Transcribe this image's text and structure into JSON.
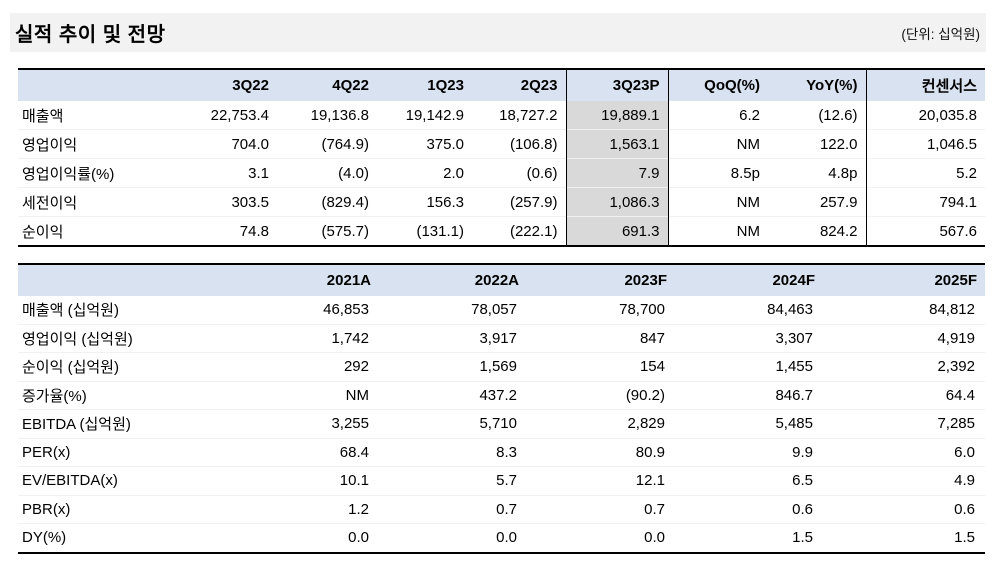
{
  "header": {
    "title": "실적 추이 및 전망",
    "unit_note": "(단위: 십억원)"
  },
  "colors": {
    "header_row_bg": "#d9e2f0",
    "highlight_col_bg": "#d9d9d9",
    "title_band_bg": "#f2f2f2",
    "border": "#000000"
  },
  "quarterly_table": {
    "columns": [
      "",
      "3Q22",
      "4Q22",
      "1Q23",
      "2Q23",
      "3Q23P",
      "QoQ(%)",
      "YoY(%)",
      "컨센서스"
    ],
    "highlight_column_index": 5,
    "vline_column_indices": [
      5,
      6,
      8
    ],
    "rows": [
      {
        "label": "매출액",
        "values": [
          "22,753.4",
          "19,136.8",
          "19,142.9",
          "18,727.2",
          "19,889.1",
          "6.2",
          "(12.6)",
          "20,035.8"
        ]
      },
      {
        "label": "영업이익",
        "values": [
          "704.0",
          "(764.9)",
          "375.0",
          "(106.8)",
          "1,563.1",
          "NM",
          "122.0",
          "1,046.5"
        ]
      },
      {
        "label": "영업이익률(%)",
        "values": [
          "3.1",
          "(4.0)",
          "2.0",
          "(0.6)",
          "7.9",
          "8.5p",
          "4.8p",
          "5.2"
        ]
      },
      {
        "label": "세전이익",
        "values": [
          "303.5",
          "(829.4)",
          "156.3",
          "(257.9)",
          "1,086.3",
          "NM",
          "257.9",
          "794.1"
        ]
      },
      {
        "label": "순이익",
        "values": [
          "74.8",
          "(575.7)",
          "(131.1)",
          "(222.1)",
          "691.3",
          "NM",
          "824.2",
          "567.6"
        ]
      }
    ]
  },
  "annual_table": {
    "columns": [
      "",
      "2021A",
      "2022A",
      "2023F",
      "2024F",
      "2025F"
    ],
    "highlight_column_index": -1,
    "vline_column_indices": [],
    "rows": [
      {
        "label": "매출액 (십억원)",
        "values": [
          "46,853",
          "78,057",
          "78,700",
          "84,463",
          "84,812"
        ]
      },
      {
        "label": "영업이익 (십억원)",
        "values": [
          "1,742",
          "3,917",
          "847",
          "3,307",
          "4,919"
        ]
      },
      {
        "label": "순이익 (십억원)",
        "values": [
          "292",
          "1,569",
          "154",
          "1,455",
          "2,392"
        ]
      },
      {
        "label": "증가율(%)",
        "values": [
          "NM",
          "437.2",
          "(90.2)",
          "846.7",
          "64.4"
        ]
      },
      {
        "label": "EBITDA (십억원)",
        "values": [
          "3,255",
          "5,710",
          "2,829",
          "5,485",
          "7,285"
        ]
      },
      {
        "label": "PER(x)",
        "values": [
          "68.4",
          "8.3",
          "80.9",
          "9.9",
          "6.0"
        ]
      },
      {
        "label": "EV/EBITDA(x)",
        "values": [
          "10.1",
          "5.7",
          "12.1",
          "6.5",
          "4.9"
        ]
      },
      {
        "label": "PBR(x)",
        "values": [
          "1.2",
          "0.7",
          "0.7",
          "0.6",
          "0.6"
        ]
      },
      {
        "label": "DY(%)",
        "values": [
          "0.0",
          "0.0",
          "0.0",
          "1.5",
          "1.5"
        ]
      }
    ]
  }
}
